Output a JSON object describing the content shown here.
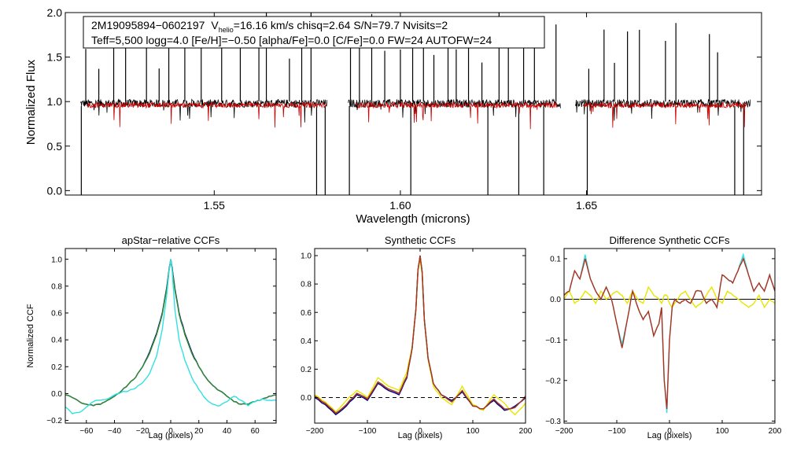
{
  "colors": {
    "black": "#000000",
    "red": "#cc0000",
    "navy": "#00008b",
    "cyan": "#33e0e0",
    "yellow": "#e6e600",
    "green": "#2e8b2e",
    "brown": "#b03020",
    "dash": "#000000"
  },
  "info_box": {
    "star_id": "2M19095894−0602197",
    "v_prefix": "V",
    "v_sub": "helio",
    "v_rest": "=16.16 km/s  chisq=2.64  S/N=79.7  Nvisits=2",
    "line2": "Teff=5,500 logg=4.0 [Fe/H]=−0.50 [alpha/Fe]=0.0 [C/Fe]=0.0 FW=24 AUTOFW=24"
  },
  "chart_data": [
    {
      "type": "line",
      "title": "",
      "xlabel": "Wavelength (microns)",
      "ylabel": "Normalized Flux",
      "xlim": [
        1.51,
        1.697
      ],
      "ylim": [
        -0.05,
        2.0
      ],
      "xticks": [
        1.55,
        1.6,
        1.65
      ],
      "xtick_labels": [
        "1.55",
        "1.60",
        "1.65"
      ],
      "yticks": [
        0.0,
        0.5,
        1.0,
        1.5,
        2.0
      ],
      "ytick_labels": [
        "0.0",
        "0.5",
        "1.0",
        "1.5",
        "2.0"
      ],
      "series": [
        {
          "name": "observed",
          "color": "black",
          "segments": [
            [
              1.514,
              1.5803
            ],
            [
              1.586,
              1.643
            ],
            [
              1.647,
              1.694
            ]
          ],
          "baseline": 0.98,
          "spikes": [
            1.5155,
            1.519,
            1.523,
            1.5262,
            1.5318,
            1.5352,
            1.5378,
            1.5421,
            1.5465,
            1.552,
            1.557,
            1.562,
            1.564,
            1.5702,
            1.5735,
            1.576,
            1.5866,
            1.589,
            1.5923,
            1.5958,
            1.6,
            1.6033,
            1.6062,
            1.609,
            1.6128,
            1.615,
            1.6183,
            1.6219,
            1.6265,
            1.629,
            1.6331,
            1.636,
            1.6418,
            1.6506,
            1.6547,
            1.6575,
            1.661,
            1.6642,
            1.6712,
            1.674,
            1.683,
            1.6852
          ],
          "dips": [
            1.5143,
            1.5775,
            1.5798,
            1.5863,
            1.6028,
            1.6235,
            1.6318,
            1.6385,
            1.6502,
            1.6898,
            1.6922
          ]
        },
        {
          "name": "model",
          "color": "red",
          "segments": [
            [
              1.516,
              1.58
            ],
            [
              1.588,
              1.642
            ],
            [
              1.649,
              1.693
            ]
          ],
          "baseline": 0.96
        }
      ]
    },
    {
      "type": "line",
      "title": "apStar−relative CCFs",
      "xlabel": "Lag (pixels)",
      "ylabel": "Normalized CCF",
      "xlim": [
        -75,
        75
      ],
      "ylim": [
        -0.22,
        1.08
      ],
      "xticks": [
        -60,
        -40,
        -20,
        0,
        20,
        40,
        60
      ],
      "xtick_labels": [
        "−60",
        "−40",
        "−20",
        "0",
        "20",
        "40",
        "60"
      ],
      "yticks": [
        -0.2,
        0.0,
        0.2,
        0.4,
        0.6,
        0.8,
        1.0
      ],
      "ytick_labels": [
        "−0.2",
        "0.0",
        "0.2",
        "0.4",
        "0.6",
        "0.8",
        "1.0"
      ],
      "series": [
        {
          "name": "ccf-1",
          "color": "navy",
          "x": [
            -75,
            -70,
            -65,
            -60,
            -55,
            -50,
            -45,
            -40,
            -35,
            -30,
            -25,
            -20,
            -15,
            -10,
            -6,
            -3,
            -1,
            0,
            1,
            3,
            6,
            10,
            15,
            20,
            25,
            30,
            35,
            40,
            45,
            50,
            55,
            60,
            65,
            70,
            75
          ],
          "y": [
            -0.01,
            -0.03,
            -0.06,
            -0.08,
            -0.09,
            -0.08,
            -0.05,
            -0.02,
            0.02,
            0.07,
            0.12,
            0.2,
            0.31,
            0.45,
            0.6,
            0.78,
            0.94,
            1.0,
            0.94,
            0.78,
            0.6,
            0.45,
            0.31,
            0.2,
            0.12,
            0.06,
            0.02,
            -0.02,
            -0.06,
            -0.08,
            -0.08,
            -0.06,
            -0.04,
            -0.02,
            -0.01
          ]
        },
        {
          "name": "ccf-2",
          "color": "green",
          "x": [
            -75,
            -70,
            -65,
            -60,
            -55,
            -50,
            -45,
            -40,
            -35,
            -30,
            -25,
            -20,
            -15,
            -10,
            -6,
            -3,
            -1,
            0,
            1,
            3,
            6,
            10,
            15,
            20,
            25,
            30,
            35,
            40,
            45,
            50,
            55,
            60,
            65,
            70,
            75
          ],
          "y": [
            -0.01,
            -0.03,
            -0.06,
            -0.08,
            -0.09,
            -0.08,
            -0.05,
            -0.02,
            0.02,
            0.07,
            0.12,
            0.2,
            0.3,
            0.44,
            0.59,
            0.77,
            0.93,
            0.99,
            0.93,
            0.77,
            0.59,
            0.44,
            0.3,
            0.2,
            0.12,
            0.06,
            0.02,
            -0.02,
            -0.06,
            -0.08,
            -0.08,
            -0.06,
            -0.04,
            -0.02,
            -0.01
          ]
        },
        {
          "name": "ccf-3",
          "color": "cyan",
          "x": [
            -75,
            -70,
            -65,
            -60,
            -55,
            -50,
            -45,
            -40,
            -35,
            -30,
            -25,
            -20,
            -15,
            -10,
            -6,
            -3,
            -1,
            0,
            1,
            3,
            6,
            10,
            15,
            20,
            25,
            30,
            35,
            40,
            45,
            50,
            55,
            60,
            65,
            70,
            75
          ],
          "y": [
            -0.1,
            -0.15,
            -0.14,
            -0.1,
            -0.06,
            -0.05,
            -0.04,
            -0.01,
            0.01,
            0.02,
            0.04,
            0.08,
            0.15,
            0.28,
            0.48,
            0.72,
            0.93,
            1.0,
            0.92,
            0.62,
            0.4,
            0.25,
            0.12,
            0.03,
            -0.04,
            -0.08,
            -0.09,
            -0.06,
            -0.02,
            -0.05,
            -0.09,
            -0.06,
            -0.04,
            -0.05,
            -0.05
          ]
        }
      ]
    },
    {
      "type": "line",
      "title": "Synthetic CCFs",
      "xlabel": "Lag (pixels)",
      "ylabel": "",
      "xlim": [
        -200,
        200
      ],
      "ylim": [
        -0.18,
        1.05
      ],
      "xticks": [
        -200,
        -100,
        0,
        100,
        200
      ],
      "xtick_labels": [
        "−200",
        "−100",
        "0",
        "100",
        "200"
      ],
      "yticks": [
        0.0,
        0.2,
        0.4,
        0.6,
        0.8,
        1.0
      ],
      "ytick_labels": [
        "0.0",
        "0.2",
        "0.4",
        "0.6",
        "0.8",
        "1.0"
      ],
      "series": [
        {
          "name": "synth-1",
          "color": "navy",
          "x": [
            -200,
            -180,
            -160,
            -140,
            -120,
            -100,
            -80,
            -60,
            -40,
            -25,
            -15,
            -8,
            -4,
            0,
            4,
            8,
            15,
            25,
            40,
            60,
            80,
            100,
            120,
            140,
            160,
            180,
            200
          ],
          "y": [
            0.0,
            -0.05,
            -0.12,
            -0.06,
            0.02,
            -0.02,
            0.1,
            0.05,
            0.02,
            0.14,
            0.35,
            0.62,
            0.9,
            1.0,
            0.88,
            0.55,
            0.28,
            0.1,
            0.02,
            -0.02,
            0.04,
            -0.06,
            -0.08,
            -0.02,
            -0.09,
            -0.06,
            0.0
          ]
        },
        {
          "name": "synth-2",
          "color": "yellow",
          "x": [
            -200,
            -180,
            -160,
            -140,
            -120,
            -100,
            -80,
            -60,
            -40,
            -25,
            -15,
            -8,
            -4,
            0,
            4,
            8,
            15,
            25,
            40,
            60,
            80,
            100,
            120,
            140,
            160,
            180,
            200
          ],
          "y": [
            0.02,
            -0.03,
            -0.1,
            -0.02,
            0.05,
            0.0,
            0.14,
            0.08,
            0.05,
            0.18,
            0.36,
            0.62,
            0.89,
            0.98,
            0.86,
            0.55,
            0.27,
            0.08,
            0.0,
            -0.05,
            0.08,
            -0.05,
            -0.09,
            0.02,
            -0.04,
            -0.12,
            -0.04
          ]
        },
        {
          "name": "synth-3",
          "color": "green",
          "x": [
            -200,
            -180,
            -160,
            -140,
            -120,
            -100,
            -80,
            -60,
            -40,
            -25,
            -15,
            -8,
            -4,
            0,
            4,
            8,
            15,
            25,
            40,
            60,
            80,
            100,
            120,
            140,
            160,
            180,
            200
          ],
          "y": [
            0.01,
            -0.04,
            -0.11,
            -0.05,
            0.03,
            -0.01,
            0.11,
            0.06,
            0.03,
            0.15,
            0.35,
            0.62,
            0.9,
            1.0,
            0.88,
            0.55,
            0.28,
            0.1,
            0.02,
            -0.03,
            0.05,
            -0.06,
            -0.08,
            -0.01,
            -0.08,
            -0.07,
            0.01
          ]
        },
        {
          "name": "synth-4",
          "color": "brown",
          "x": [
            -200,
            -180,
            -160,
            -140,
            -120,
            -100,
            -80,
            -60,
            -40,
            -25,
            -15,
            -8,
            -4,
            0,
            4,
            8,
            15,
            25,
            40,
            60,
            80,
            100,
            120,
            140,
            160,
            180,
            200
          ],
          "y": [
            0.01,
            -0.04,
            -0.11,
            -0.05,
            0.03,
            -0.01,
            0.11,
            0.06,
            0.03,
            0.15,
            0.35,
            0.62,
            0.9,
            1.0,
            0.88,
            0.55,
            0.28,
            0.1,
            0.02,
            -0.03,
            0.05,
            -0.06,
            -0.08,
            -0.01,
            -0.08,
            -0.07,
            0.01
          ]
        }
      ],
      "reference_line": {
        "y": 0.0,
        "style": "dashed"
      }
    },
    {
      "type": "line",
      "title": "Difference Synthetic CCFs",
      "xlabel": "Lag (pixels)",
      "ylabel": "",
      "xlim": [
        -200,
        200
      ],
      "ylim": [
        -0.305,
        0.125
      ],
      "xticks": [
        -200,
        -100,
        0,
        100,
        200
      ],
      "xtick_labels": [
        "−200",
        "−100",
        "0",
        "100",
        "200"
      ],
      "yticks": [
        -0.3,
        -0.2,
        -0.1,
        0.0,
        0.1
      ],
      "ytick_labels": [
        "−0.3",
        "−0.2",
        "−0.1",
        "0.0",
        "0.1"
      ],
      "series": [
        {
          "name": "diff-1",
          "color": "cyan",
          "x": [
            -200,
            -190,
            -180,
            -170,
            -160,
            -150,
            -140,
            -130,
            -120,
            -110,
            -100,
            -90,
            -80,
            -70,
            -60,
            -50,
            -40,
            -30,
            -20,
            -15,
            -10,
            -5,
            0,
            5,
            10,
            20,
            30,
            40,
            50,
            60,
            70,
            80,
            90,
            100,
            110,
            120,
            130,
            140,
            150,
            160,
            170,
            180,
            190,
            200
          ],
          "y": [
            0.01,
            0.02,
            0.07,
            0.05,
            0.11,
            0.05,
            0.02,
            0.0,
            0.03,
            0.0,
            -0.06,
            -0.11,
            -0.05,
            0.02,
            -0.02,
            -0.05,
            -0.03,
            -0.09,
            -0.06,
            -0.02,
            -0.2,
            -0.28,
            -0.1,
            -0.02,
            0.0,
            -0.01,
            0.0,
            -0.01,
            0.02,
            0.02,
            -0.01,
            0.0,
            -0.02,
            0.06,
            0.05,
            0.04,
            0.07,
            0.11,
            0.06,
            0.02,
            0.04,
            0.02,
            0.06,
            0.02
          ]
        },
        {
          "name": "diff-2",
          "color": "yellow",
          "x": [
            -200,
            -190,
            -180,
            -170,
            -160,
            -150,
            -140,
            -130,
            -120,
            -110,
            -100,
            -90,
            -80,
            -70,
            -60,
            -50,
            -40,
            -30,
            -20,
            -15,
            -10,
            -5,
            0,
            5,
            10,
            20,
            30,
            40,
            50,
            60,
            70,
            80,
            90,
            100,
            110,
            120,
            130,
            140,
            150,
            160,
            170,
            180,
            190,
            200
          ],
          "y": [
            0.0,
            0.02,
            -0.01,
            0.0,
            0.02,
            0.01,
            -0.01,
            0.02,
            0.0,
            0.01,
            0.02,
            0.01,
            -0.01,
            0.02,
            0.0,
            -0.01,
            0.03,
            0.01,
            0.0,
            -0.01,
            0.01,
            0.01,
            -0.01,
            -0.02,
            -0.01,
            0.01,
            0.02,
            0.0,
            -0.02,
            -0.01,
            0.01,
            0.03,
            0.0,
            -0.01,
            0.02,
            0.01,
            0.0,
            -0.01,
            -0.02,
            -0.01,
            0.01,
            -0.02,
            0.0,
            -0.01
          ]
        },
        {
          "name": "diff-3",
          "color": "brown",
          "x": [
            -200,
            -190,
            -180,
            -170,
            -160,
            -150,
            -140,
            -130,
            -120,
            -110,
            -100,
            -90,
            -80,
            -70,
            -60,
            -50,
            -40,
            -30,
            -20,
            -15,
            -10,
            -5,
            0,
            5,
            10,
            20,
            30,
            40,
            50,
            60,
            70,
            80,
            90,
            100,
            110,
            120,
            130,
            140,
            150,
            160,
            170,
            180,
            190,
            200
          ],
          "y": [
            0.01,
            0.02,
            0.07,
            0.05,
            0.1,
            0.05,
            0.02,
            0.0,
            0.03,
            0.0,
            -0.06,
            -0.12,
            -0.05,
            0.02,
            -0.02,
            -0.05,
            -0.03,
            -0.09,
            -0.06,
            -0.02,
            -0.2,
            -0.27,
            -0.1,
            -0.02,
            0.0,
            -0.01,
            0.0,
            -0.01,
            0.02,
            0.02,
            -0.01,
            0.0,
            -0.02,
            0.06,
            0.05,
            0.04,
            0.07,
            0.1,
            0.06,
            0.02,
            0.04,
            0.02,
            0.06,
            0.02
          ]
        }
      ],
      "reference_line": {
        "y": 0.0,
        "style": "solid"
      }
    }
  ]
}
